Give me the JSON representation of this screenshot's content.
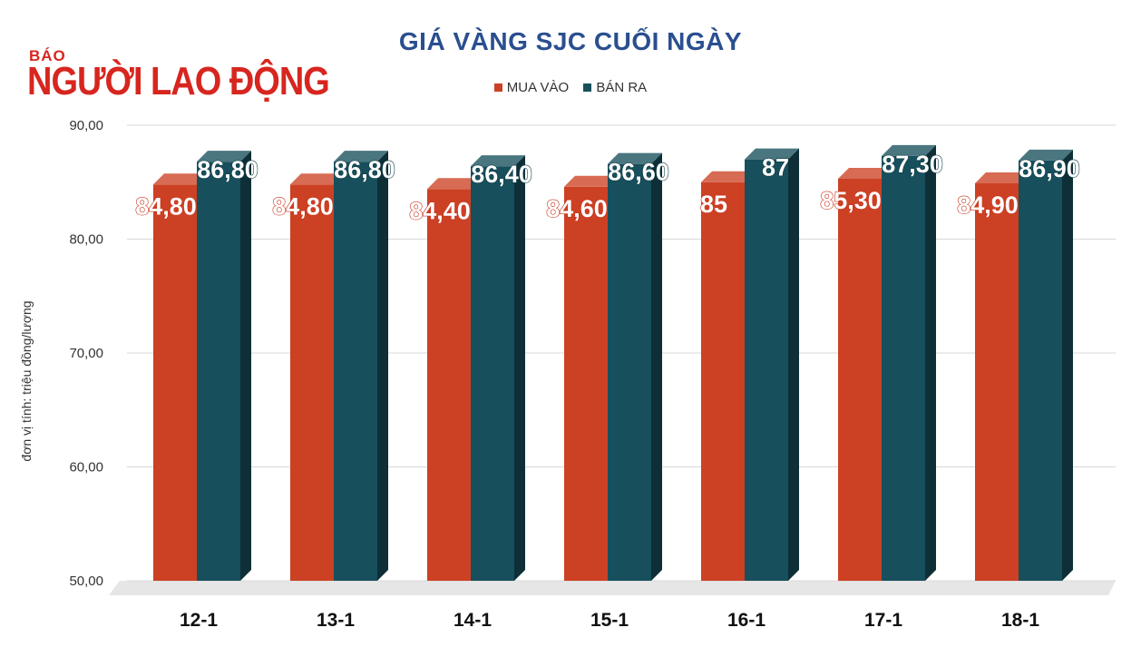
{
  "logo": {
    "small": "BÁO",
    "big": "NGƯỜI LAO ĐỘNG"
  },
  "chart_data": {
    "type": "bar",
    "title": "GIÁ VÀNG SJC CUỐI NGÀY",
    "xlabel": "",
    "ylabel": "đơn vị tính: triệu đồng/lượng",
    "categories": [
      "12-1",
      "13-1",
      "14-1",
      "15-1",
      "16-1",
      "17-1",
      "18-1"
    ],
    "series": [
      {
        "name": "MUA VÀO",
        "color": "#cc4124",
        "values": [
          84.8,
          84.8,
          84.4,
          84.6,
          85,
          85.3,
          84.9
        ],
        "labels": [
          "84,80",
          "84,80",
          "84,40",
          "84,60",
          "85",
          "85,30",
          "84,90"
        ]
      },
      {
        "name": "BÁN RA",
        "color": "#174f5c",
        "values": [
          86.8,
          86.8,
          86.4,
          86.6,
          87,
          87.3,
          86.9
        ],
        "labels": [
          "86,80",
          "86,80",
          "86,40",
          "86,60",
          "87",
          "87,30",
          "86,90"
        ]
      }
    ],
    "ylim": [
      50,
      90
    ],
    "yticks": [
      "50,00",
      "60,00",
      "70,00",
      "80,00",
      "90,00"
    ],
    "grid": true,
    "legend": "top-center"
  }
}
